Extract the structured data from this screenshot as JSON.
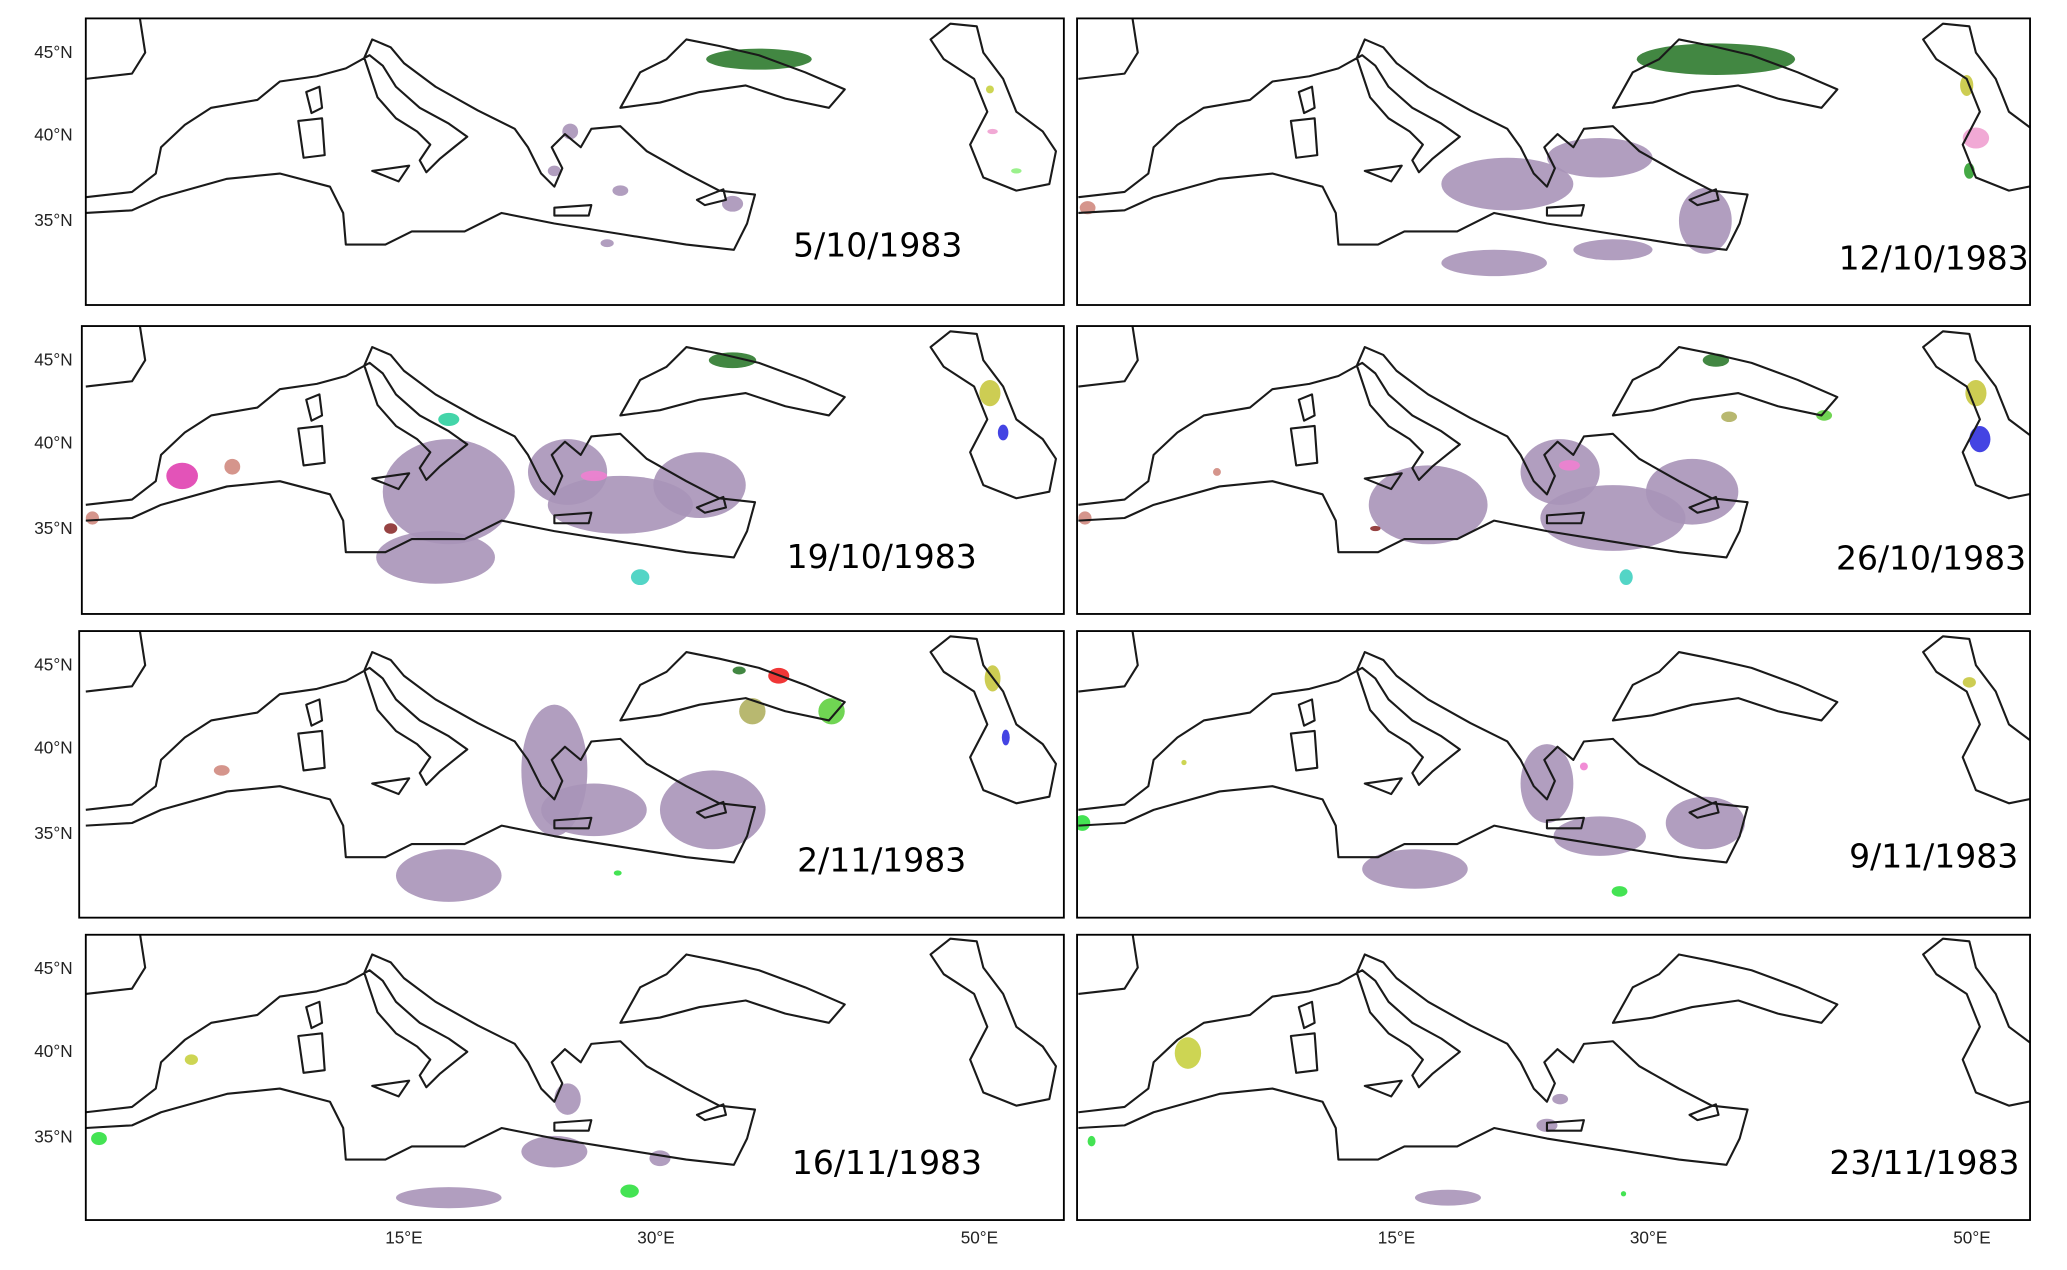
{
  "panels": [
    {
      "date": "5/10/1983"
    },
    {
      "date": "12/10/1983"
    },
    {
      "date": "19/10/1983"
    },
    {
      "date": "26/10/1983"
    },
    {
      "date": "2/11/1983"
    },
    {
      "date": "9/11/1983"
    },
    {
      "date": "16/11/1983"
    },
    {
      "date": "23/11/1983"
    }
  ],
  "lat_labels": [
    "45°N",
    "40°N",
    "35°N"
  ],
  "lon_labels": [
    "15°E",
    "30°E",
    "50°E"
  ]
}
